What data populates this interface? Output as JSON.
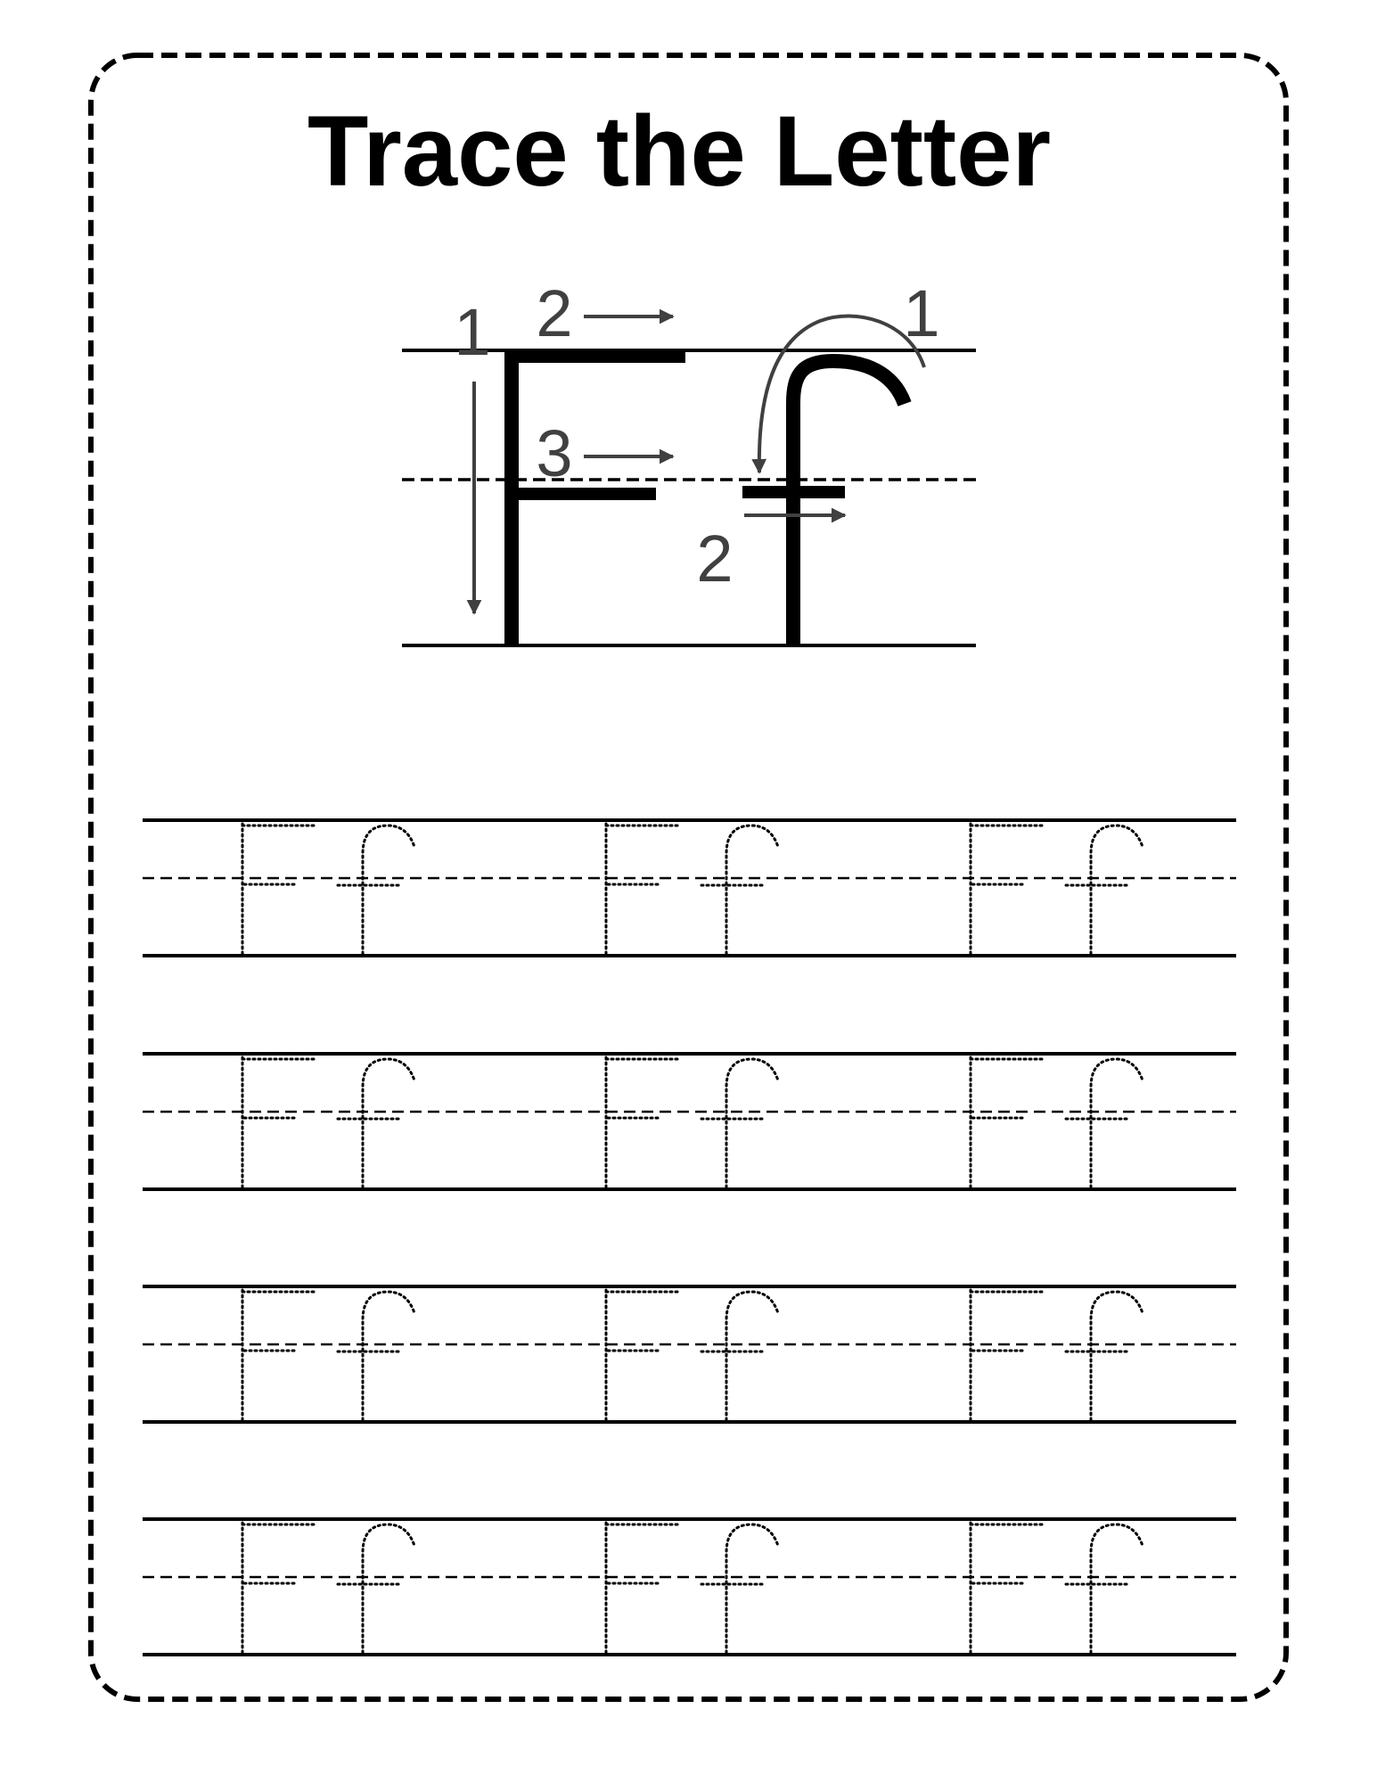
{
  "worksheet": {
    "title": "Trace the Letter",
    "letters": {
      "uppercase": "F",
      "lowercase": "f"
    },
    "stroke_numbers": {
      "uppercase": [
        "1",
        "2",
        "3"
      ],
      "lowercase": [
        "1",
        "2"
      ]
    },
    "practice": {
      "rows": 4,
      "pairs_per_row": 3
    }
  }
}
